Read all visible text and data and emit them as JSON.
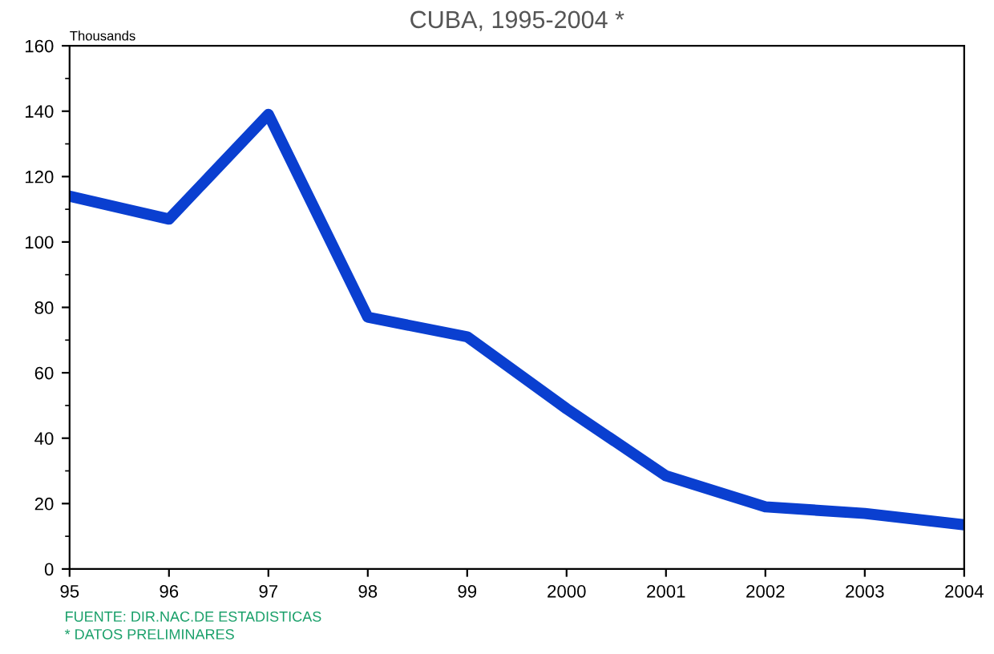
{
  "chart_data": {
    "type": "line",
    "title": "CUBA, 1995-2004 *",
    "ylabel": "Thousands",
    "categories": [
      "95",
      "96",
      "97",
      "98",
      "99",
      "2000",
      "2001",
      "2002",
      "2003",
      "2004"
    ],
    "series": [
      {
        "color": "#0a3fd0",
        "values": [
          114,
          107,
          139,
          77,
          71,
          49,
          28.5,
          19,
          17,
          13.5
        ]
      }
    ],
    "ylim": [
      0,
      160
    ],
    "yticks": [
      0,
      20,
      40,
      60,
      80,
      100,
      120,
      140,
      160
    ],
    "grid": false,
    "legend": false,
    "marker": "none",
    "line_style": "solid",
    "annotations": [
      "FUENTE: DIR.NAC.DE ESTADISTICAS",
      "* DATOS PRELIMINARES"
    ]
  }
}
